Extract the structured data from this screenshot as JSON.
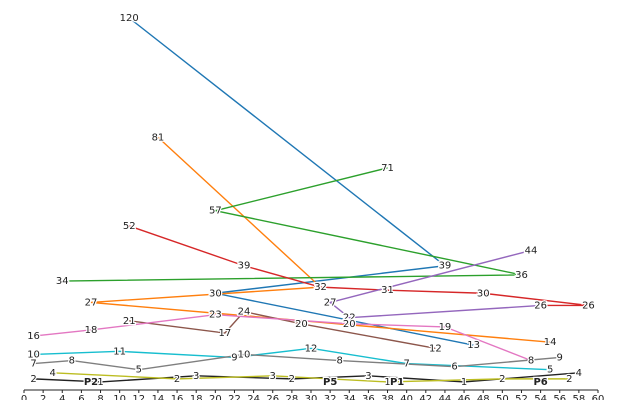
{
  "chart_data": {
    "type": "line",
    "xlim": [
      0,
      60
    ],
    "ylim": [
      0,
      120
    ],
    "xticks": [
      0,
      2,
      4,
      6,
      8,
      10,
      12,
      14,
      16,
      18,
      20,
      22,
      24,
      26,
      28,
      30,
      32,
      34,
      36,
      38,
      40,
      42,
      44,
      46,
      48,
      50,
      52,
      54,
      56,
      58,
      60
    ],
    "series": [
      {
        "color": "#1f77b4",
        "x": [
          11,
          44,
          20,
          47
        ],
        "values": [
          120,
          39,
          30,
          13
        ]
      },
      {
        "color": "#ff7f0e",
        "x": [
          14,
          31,
          7,
          55
        ],
        "values": [
          81,
          32,
          27,
          14
        ]
      },
      {
        "color": "#2ca02c",
        "x": [
          38,
          20,
          52,
          4
        ],
        "values": [
          71,
          57,
          36,
          34
        ]
      },
      {
        "color": "#d62728",
        "x": [
          11,
          23,
          31,
          38,
          48,
          59,
          54
        ],
        "values": [
          52,
          39,
          32,
          31,
          30,
          26,
          26
        ]
      },
      {
        "color": "#9467bd",
        "x": [
          53,
          32,
          34,
          54
        ],
        "values": [
          44,
          27,
          22,
          26
        ]
      },
      {
        "color": "#8c564b",
        "x": [
          11,
          21,
          23,
          29,
          43
        ],
        "values": [
          21,
          17,
          24,
          20,
          12
        ]
      },
      {
        "color": "#e377c2",
        "x": [
          1,
          7,
          20,
          34,
          44,
          53
        ],
        "values": [
          16,
          18,
          23,
          20,
          19,
          8
        ]
      },
      {
        "color": "#17becf",
        "x": [
          1,
          10,
          22,
          30,
          40,
          55
        ],
        "values": [
          10,
          11,
          9,
          12,
          7,
          5
        ]
      },
      {
        "color": "#7f7f7f",
        "x": [
          1,
          5,
          12,
          23,
          33,
          45,
          56
        ],
        "values": [
          7,
          8,
          5,
          10,
          8,
          6,
          9
        ]
      },
      {
        "color": "#222222",
        "x": [
          1,
          8,
          18,
          28,
          36,
          46,
          58
        ],
        "values": [
          2,
          1,
          3,
          2,
          3,
          1,
          4
        ]
      },
      {
        "color": "#bcbd22",
        "x": [
          3,
          16,
          26,
          38,
          50,
          57
        ],
        "values": [
          4,
          2,
          3,
          1,
          2,
          2
        ]
      }
    ],
    "annotations": [
      {
        "text": "P2",
        "x": 7,
        "y": 1
      },
      {
        "text": "P5",
        "x": 32,
        "y": 1
      },
      {
        "text": "P1",
        "x": 39,
        "y": 1
      },
      {
        "text": "P6",
        "x": 54,
        "y": 1
      }
    ]
  }
}
